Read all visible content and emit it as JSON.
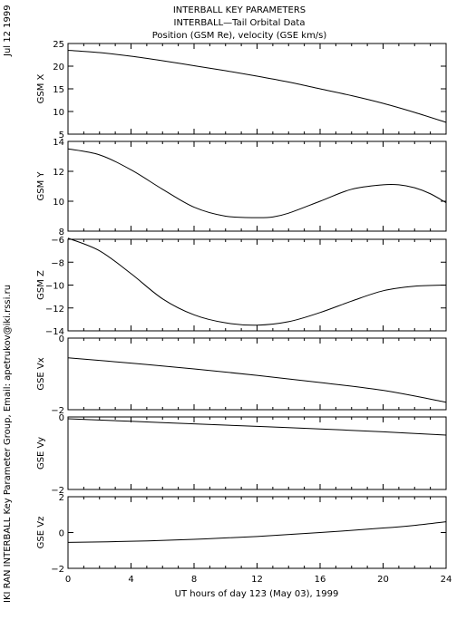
{
  "header": {
    "title_line1": "INTERBALL KEY PARAMETERS",
    "title_line2": "INTERBALL—Tail Orbital Data",
    "title_line3": "Position (GSM Re), velocity (GSE km/s)"
  },
  "side": {
    "date": "Jul 12 1999",
    "credit": "IKI RAN INTERBALL Key Parameter Group, Email: apetrukov@iki.rssi.ru"
  },
  "chart_data": {
    "type": "line",
    "x_axis": {
      "label": "UT hours of day 123 (May 03), 1999",
      "range": [
        0,
        24
      ],
      "ticks": [
        0,
        4,
        8,
        12,
        16,
        20,
        24
      ]
    },
    "panels": [
      {
        "ylabel": "GSM X",
        "ylim": [
          5,
          25
        ],
        "yticks": [
          5,
          10,
          15,
          20,
          25
        ],
        "x": [
          0,
          2,
          4,
          6,
          8,
          10,
          12,
          14,
          16,
          18,
          20,
          22,
          24
        ],
        "y": [
          23.5,
          23.0,
          22.2,
          21.2,
          20.1,
          19.0,
          17.8,
          16.5,
          15.0,
          13.5,
          11.8,
          9.8,
          7.6
        ]
      },
      {
        "ylabel": "GSM Y",
        "ylim": [
          8,
          14
        ],
        "yticks": [
          8,
          10,
          12,
          14
        ],
        "x": [
          0,
          2,
          4,
          6,
          8,
          10,
          12,
          13,
          14,
          16,
          18,
          20,
          21,
          22,
          23,
          24
        ],
        "y": [
          13.5,
          13.1,
          12.1,
          10.8,
          9.6,
          9.0,
          8.9,
          8.95,
          9.2,
          10.0,
          10.8,
          11.1,
          11.1,
          10.9,
          10.5,
          9.9
        ]
      },
      {
        "ylabel": "GSM Z",
        "ylim": [
          -14,
          -6
        ],
        "yticks": [
          -14,
          -12,
          -10,
          -8,
          -6
        ],
        "x": [
          0,
          2,
          4,
          6,
          8,
          10,
          12,
          14,
          16,
          18,
          20,
          22,
          24
        ],
        "y": [
          -5.9,
          -7.0,
          -9.0,
          -11.2,
          -12.6,
          -13.3,
          -13.5,
          -13.2,
          -12.4,
          -11.4,
          -10.5,
          -10.1,
          -10.0
        ]
      },
      {
        "ylabel": "GSE Vx",
        "ylim": [
          -2,
          0
        ],
        "yticks": [
          -2,
          0
        ],
        "x": [
          0,
          4,
          8,
          12,
          16,
          20,
          24
        ],
        "y": [
          -0.55,
          -0.7,
          -0.86,
          -1.04,
          -1.24,
          -1.46,
          -1.79
        ]
      },
      {
        "ylabel": "GSE Vy",
        "ylim": [
          -2,
          0
        ],
        "yticks": [
          -2,
          0
        ],
        "x": [
          0,
          4,
          8,
          12,
          16,
          20,
          24
        ],
        "y": [
          -0.05,
          -0.12,
          -0.19,
          -0.26,
          -0.33,
          -0.41,
          -0.5
        ]
      },
      {
        "ylabel": "GSE Vz",
        "ylim": [
          -2,
          2
        ],
        "yticks": [
          -2,
          0,
          2
        ],
        "x": [
          0,
          4,
          8,
          12,
          16,
          20,
          22,
          24
        ],
        "y": [
          -0.55,
          -0.49,
          -0.38,
          -0.22,
          0.0,
          0.25,
          0.4,
          0.6
        ]
      }
    ]
  }
}
